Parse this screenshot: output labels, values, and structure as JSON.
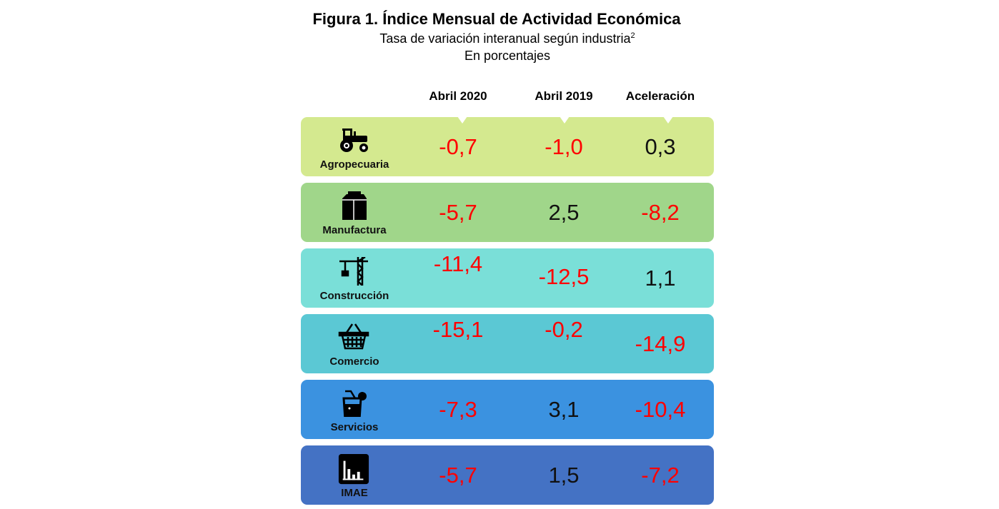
{
  "title": "Figura 1. Índice Mensual de Actividad Económica",
  "subtitle": "Tasa de variación interanual según industria",
  "subtitle_sup": "2",
  "unit": "En porcentajes",
  "chart_data": {
    "type": "table",
    "columns": [
      "Abril 2020",
      "Abril 2019",
      "Aceleración"
    ],
    "rows": [
      {
        "label": "Agropecuaria",
        "icon": "tractor-icon",
        "color": "#d4e98f",
        "values": [
          "-0,7",
          "-1,0",
          "0,3"
        ]
      },
      {
        "label": "Manufactura",
        "icon": "package-icon",
        "color": "#a0d68a",
        "values": [
          "-5,7",
          "2,5",
          "-8,2"
        ]
      },
      {
        "label": "Construcción",
        "icon": "crane-icon",
        "color": "#7adfd8",
        "values": [
          "-11,4",
          "-12,5",
          "1,1"
        ]
      },
      {
        "label": "Comercio",
        "icon": "basket-icon",
        "color": "#5bc8d4",
        "values": [
          "-15,1",
          "-0,2",
          "-14,9"
        ]
      },
      {
        "label": "Servicios",
        "icon": "drink-icon",
        "color": "#3b92e0",
        "values": [
          "-7,3",
          "3,1",
          "-10,4"
        ]
      },
      {
        "label": "IMAE",
        "icon": "bar-chart-icon",
        "color": "#4472c4",
        "values": [
          "-5,7",
          "1,5",
          "-7,2"
        ]
      }
    ],
    "negative_color": "#ff0000"
  }
}
